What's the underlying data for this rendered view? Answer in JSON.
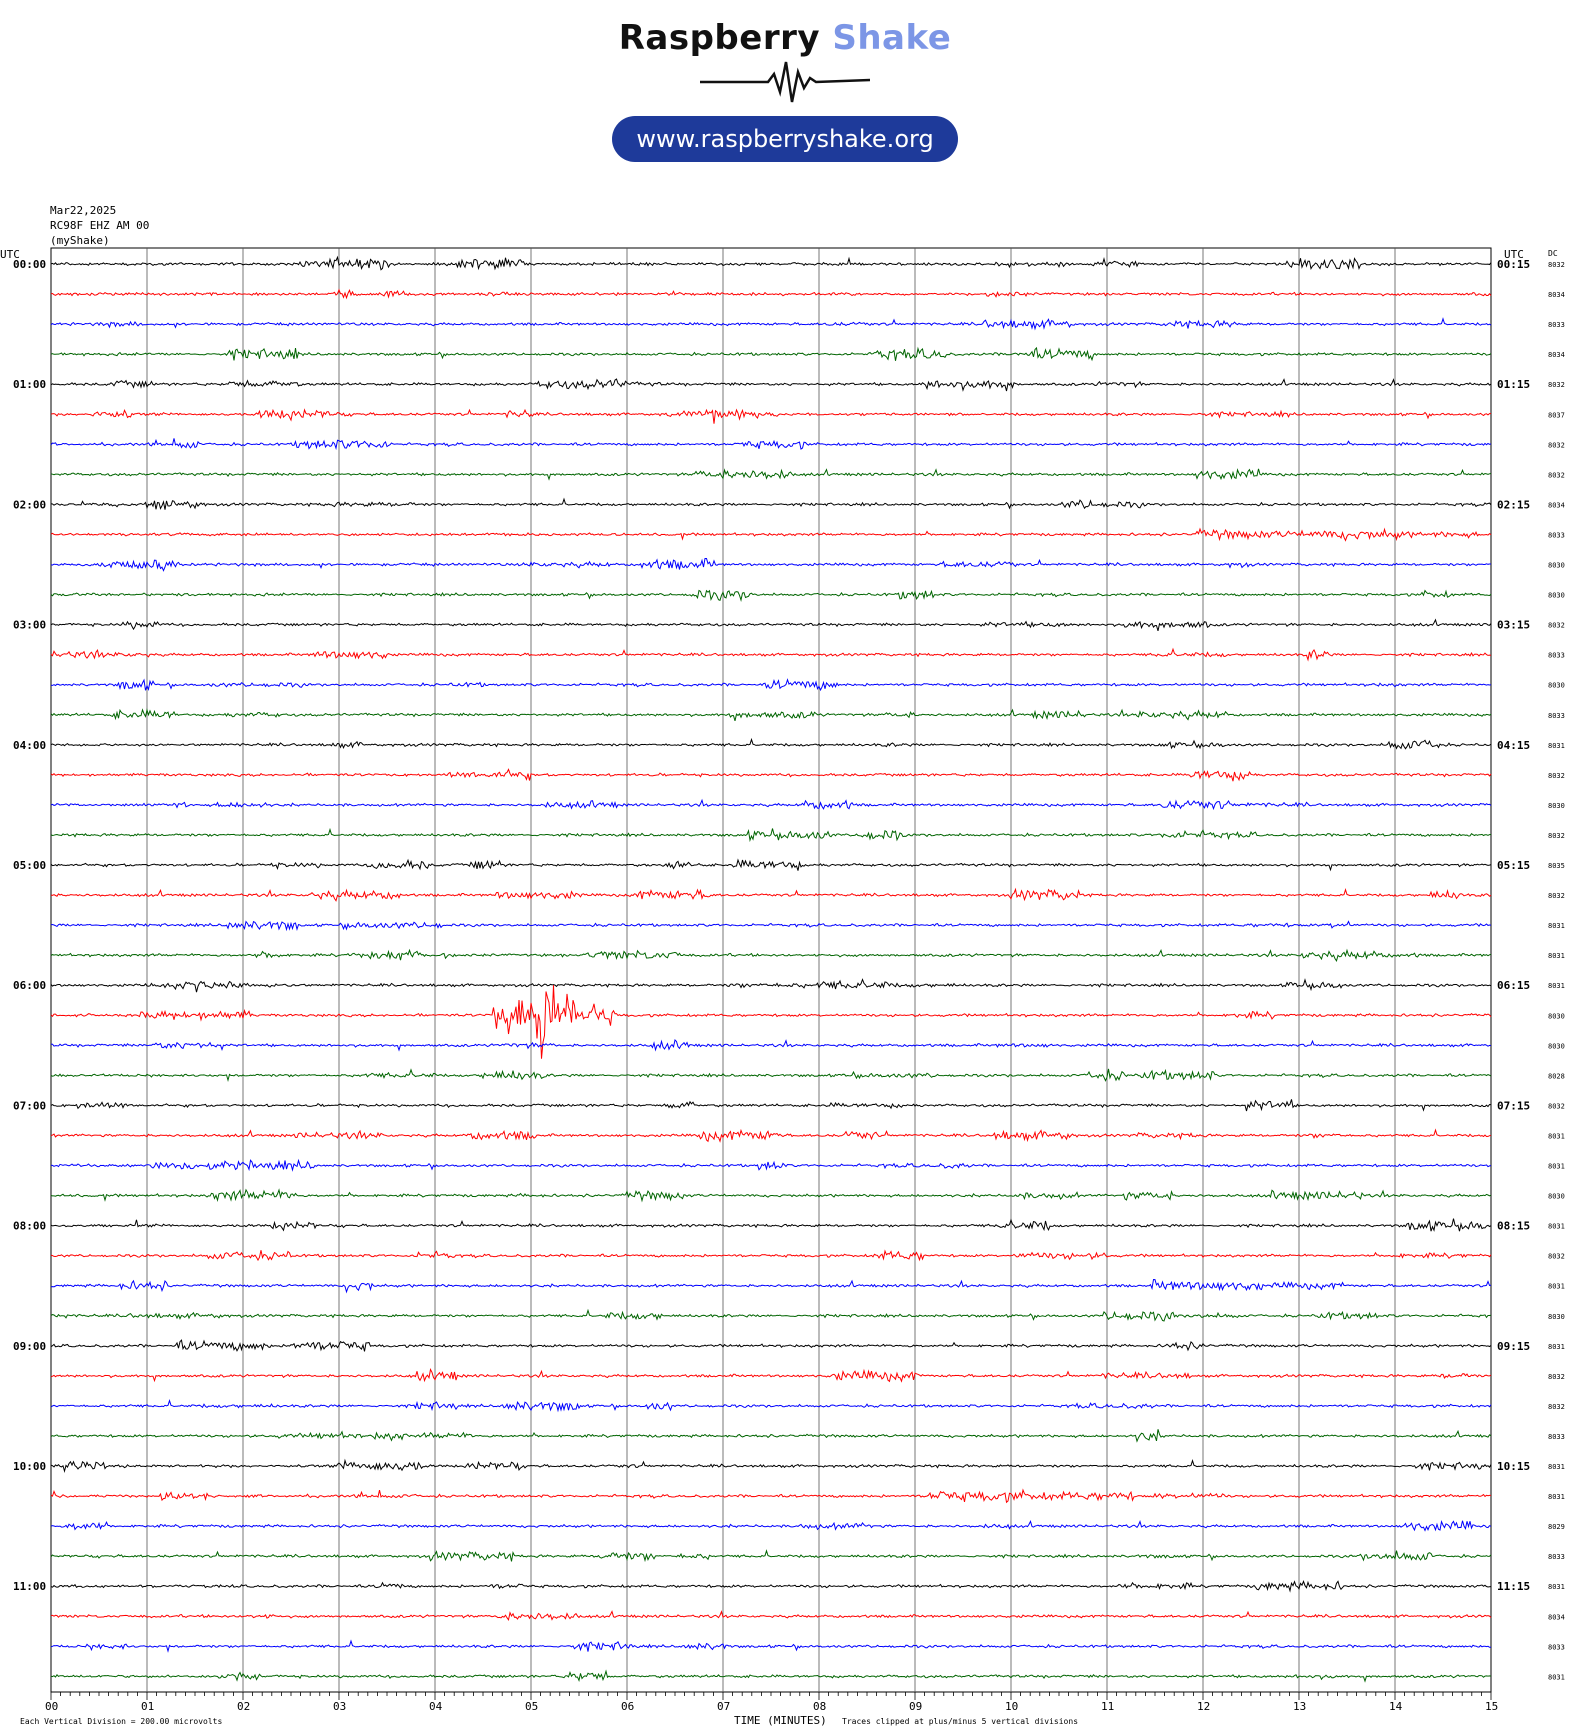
{
  "logo": {
    "brand_dark": "Raspberry",
    "brand_light": "Shake",
    "url": "www.raspberryshake.org"
  },
  "header": {
    "date": "Mar22,2025",
    "station": "RC98F EHZ AM 00",
    "network": "(myShake)"
  },
  "chart_data": {
    "type": "line",
    "title": "",
    "xlabel": "TIME (MINUTES)",
    "ylabel": "",
    "left_axis_label": "UTC",
    "right_axis_label": "UTC",
    "dc_label": "DC",
    "x_range": [
      0,
      15
    ],
    "x_ticks": [
      "00",
      "01",
      "02",
      "03",
      "04",
      "05",
      "06",
      "07",
      "08",
      "09",
      "10",
      "11",
      "12",
      "13",
      "14",
      "15"
    ],
    "grid": "vertical lines each minute",
    "row_colors": [
      "#000000",
      "#ff0000",
      "#0000ff",
      "#006400"
    ],
    "left_hour_labels": [
      "00:00",
      "01:00",
      "02:00",
      "03:00",
      "04:00",
      "05:00",
      "06:00",
      "07:00",
      "08:00",
      "09:00",
      "10:00",
      "11:00"
    ],
    "right_hour_labels": [
      "00:15",
      "01:15",
      "02:15",
      "03:15",
      "04:15",
      "05:15",
      "06:15",
      "07:15",
      "08:15",
      "09:15",
      "10:15",
      "11:15"
    ],
    "dc_offsets": [
      "8032",
      "8034",
      "8033",
      "8034",
      "8032",
      "8037",
      "8032",
      "8032",
      "8034",
      "8033",
      "8030",
      "8030",
      "8032",
      "8033",
      "8030",
      "8033",
      "8031",
      "8032",
      "8030",
      "8032",
      "8035",
      "8032",
      "8031",
      "8031",
      "8031",
      "8030",
      "8030",
      "8028",
      "8032",
      "8031",
      "8031",
      "8030",
      "8031",
      "8032",
      "8031",
      "8030",
      "8031",
      "8032",
      "8032",
      "8033",
      "8031",
      "8031",
      "8029",
      "8033",
      "8031",
      "8034",
      "8033",
      "8031"
    ],
    "events": [
      {
        "row": 5,
        "start_min": 6.4,
        "end_min": 7.9,
        "amplitude": 5
      },
      {
        "row": 25,
        "start_min": 4.6,
        "end_min": 5.9,
        "amplitude": 32
      },
      {
        "row": 23,
        "start_min": 3.1,
        "end_min": 4.2,
        "amplitude": 5
      },
      {
        "row": 24,
        "start_min": 1.0,
        "end_min": 2.5,
        "amplitude": 5
      },
      {
        "row": 20,
        "start_min": 6.3,
        "end_min": 6.8,
        "amplitude": 5
      }
    ],
    "footer_left": "Each Vertical Division =  200.00 microvolts",
    "footer_right": "Traces clipped at plus/minus 5 vertical divisions"
  }
}
